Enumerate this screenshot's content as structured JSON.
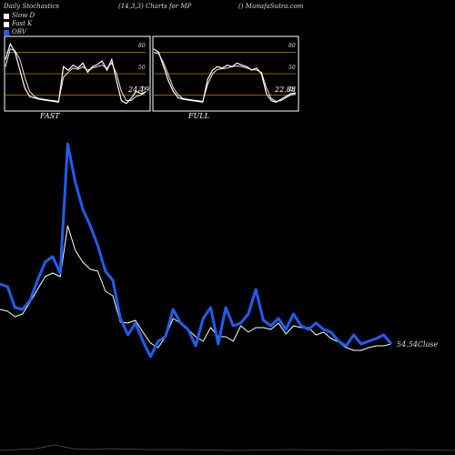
{
  "header": {
    "left": "Daily Stochastics",
    "middle": "(14,3,3) Charts for MP",
    "right": "() MunafaSutra.com"
  },
  "legend": [
    {
      "label": "Slow  D",
      "color": "#ffffff"
    },
    {
      "label": "Fast K",
      "color": "#ffffff"
    },
    {
      "label": "OBV",
      "color": "#1e5ef0"
    }
  ],
  "panels": {
    "fast": {
      "label": "FAST",
      "last_value": "24.19",
      "levels": [
        "80",
        "50",
        "20"
      ]
    },
    "full": {
      "label": "FULL",
      "last_value": "22.88",
      "levels": [
        "80",
        "50",
        "20"
      ]
    }
  },
  "chart_data": [
    {
      "type": "line",
      "title": "FAST",
      "ylim": [
        0,
        100
      ],
      "levels": [
        80,
        50,
        20
      ],
      "series": [
        {
          "name": "Fast K",
          "values": [
            70,
            92,
            80,
            55,
            30,
            18,
            16,
            14,
            13,
            12,
            11,
            10,
            60,
            55,
            62,
            58,
            65,
            52,
            60,
            63,
            68,
            55,
            70,
            40,
            12,
            8,
            15,
            25,
            22,
            24
          ]
        },
        {
          "name": "Slow  D",
          "values": [
            60,
            85,
            82,
            70,
            45,
            25,
            18,
            15,
            14,
            13,
            12,
            11,
            45,
            52,
            58,
            56,
            60,
            55,
            58,
            60,
            62,
            58,
            65,
            50,
            25,
            12,
            12,
            18,
            20,
            24
          ]
        }
      ]
    },
    {
      "type": "line",
      "title": "FULL",
      "ylim": [
        0,
        100
      ],
      "levels": [
        80,
        50,
        20
      ],
      "series": [
        {
          "name": "Fast K",
          "values": [
            85,
            80,
            60,
            40,
            25,
            16,
            14,
            13,
            12,
            11,
            10,
            42,
            55,
            60,
            58,
            62,
            60,
            65,
            62,
            60,
            55,
            58,
            50,
            22,
            12,
            10,
            14,
            18,
            22,
            23
          ]
        },
        {
          "name": "Slow  D",
          "values": [
            80,
            78,
            65,
            48,
            30,
            20,
            15,
            14,
            13,
            12,
            11,
            35,
            50,
            56,
            57,
            58,
            60,
            61,
            60,
            58,
            56,
            55,
            52,
            30,
            15,
            11,
            12,
            16,
            20,
            22
          ]
        }
      ]
    },
    {
      "type": "line",
      "title": "Price vs OBV",
      "last_price_label": "54.54",
      "last_price_suffix": "Close",
      "series": [
        {
          "name": "OBV",
          "color": "#1e5ef0",
          "values": [
            312,
            315,
            338,
            340,
            330,
            308,
            288,
            282,
            300,
            158,
            200,
            230,
            248,
            270,
            298,
            308,
            350,
            368,
            355,
            375,
            392,
            375,
            370,
            340,
            355,
            362,
            380,
            350,
            338,
            378,
            338,
            358,
            355,
            345,
            318,
            352,
            358,
            350,
            362,
            345,
            358,
            362,
            355,
            362,
            365,
            375,
            380,
            368,
            378,
            375,
            372,
            368,
            378
          ]
        },
        {
          "name": "Close",
          "color": "#ffffff",
          "values": [
            340,
            342,
            348,
            345,
            332,
            318,
            304,
            300,
            304,
            248,
            275,
            288,
            296,
            298,
            320,
            325,
            354,
            355,
            352,
            365,
            377,
            382,
            370,
            350,
            355,
            362,
            370,
            375,
            360,
            370,
            370,
            375,
            358,
            365,
            360,
            360,
            362,
            355,
            367,
            358,
            360,
            360,
            368,
            365,
            372,
            376,
            382,
            385,
            385,
            382,
            380,
            380,
            378
          ]
        }
      ]
    }
  ]
}
